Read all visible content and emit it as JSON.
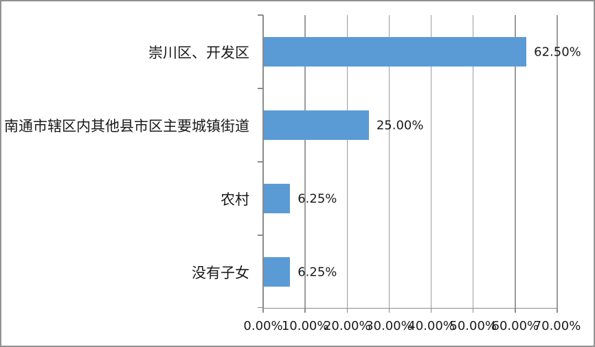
{
  "chart_data": {
    "type": "bar",
    "orientation": "horizontal",
    "title": "",
    "categories": [
      "崇川区、开发区",
      "南通市辖区内其他县市区主要城镇街道",
      "农村",
      "没有子女"
    ],
    "values": [
      62.5,
      25.0,
      6.25,
      6.25
    ],
    "data_labels": [
      "62.50%",
      "25.00%",
      "6.25%",
      "6.25%"
    ],
    "x_tick_labels": [
      "0.00%",
      "10.00%",
      "20.00%",
      "30.00%",
      "40.00%",
      "50.00%",
      "60.00%",
      "70.00%"
    ],
    "xlim": [
      0,
      70
    ],
    "grid": true,
    "legend": "none",
    "colors": {
      "bar": "#5B9BD5",
      "gridline": "#9b9b9b",
      "axis": "#8a8a8a",
      "text": "#1a1a1a",
      "border": "#919191",
      "background": "#ffffff"
    }
  }
}
